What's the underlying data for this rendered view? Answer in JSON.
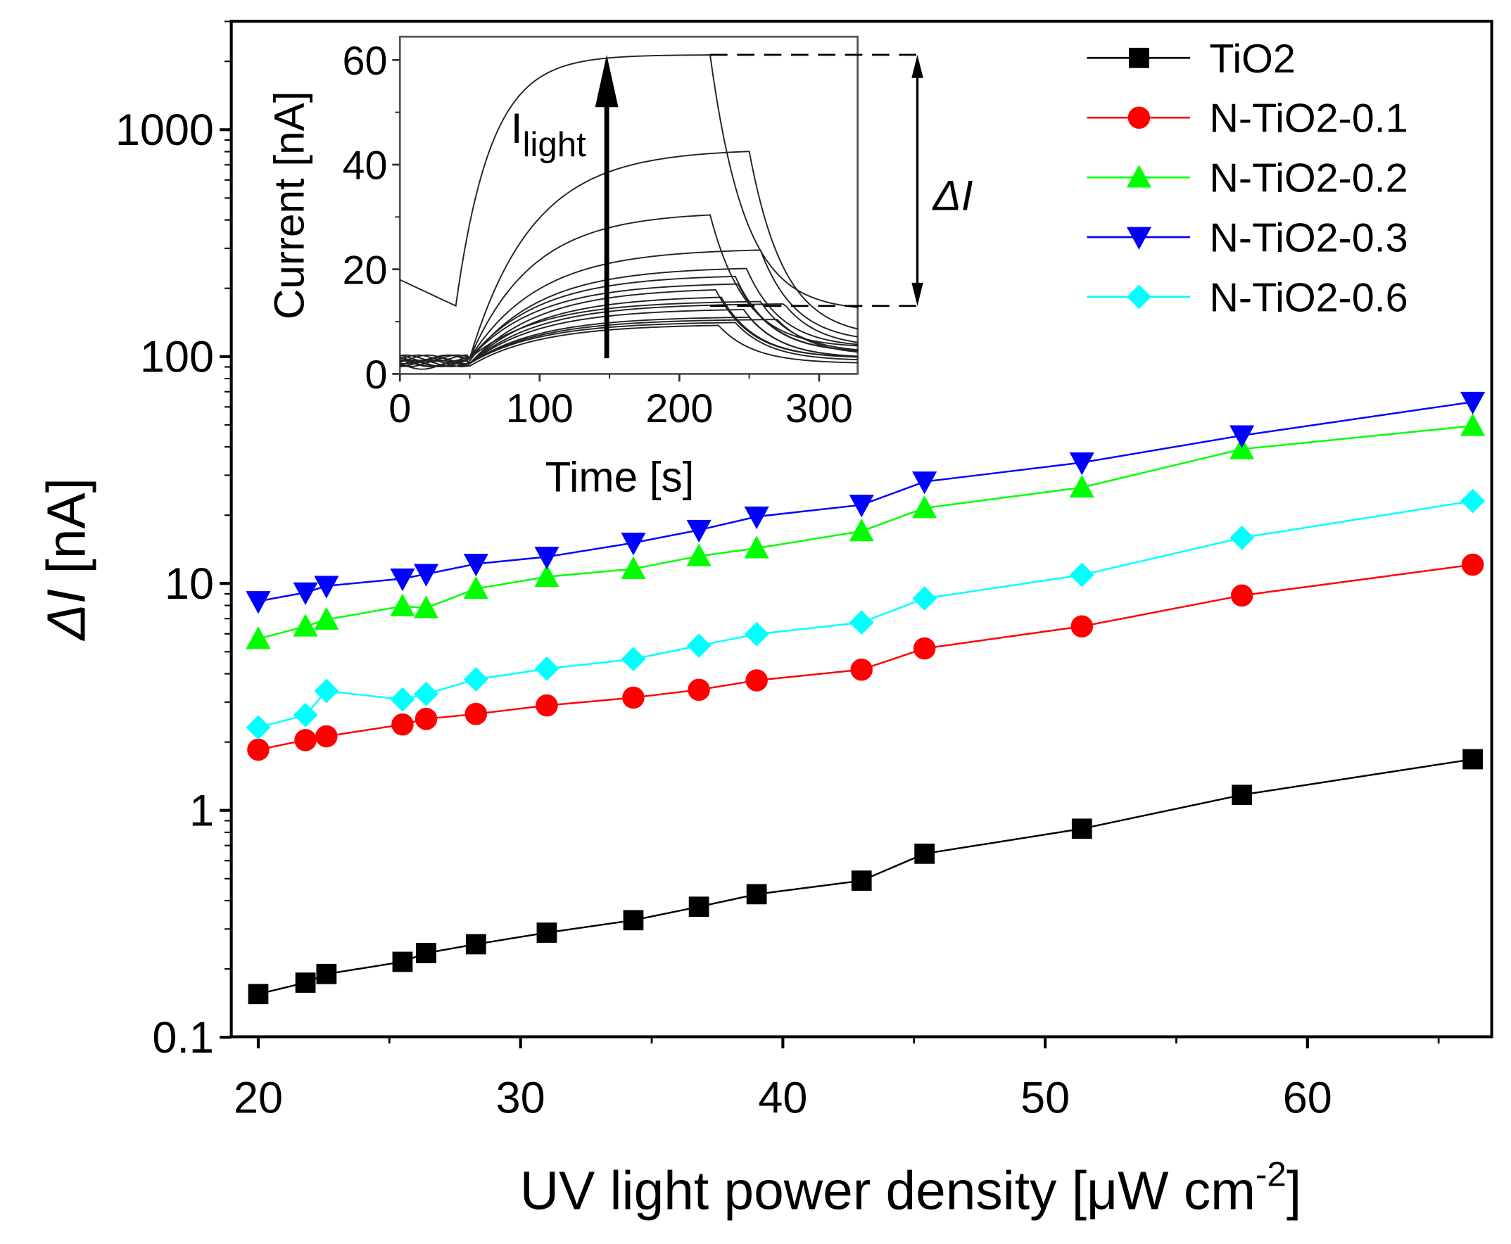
{
  "chart_data": {
    "type": "line",
    "title": "",
    "xlabel": "UV light power density [μW cm",
    "xlabel_sup": "-2",
    "xlabel_end": "]",
    "ylabel_symbol": "ΔI",
    "ylabel_unit": " [nA]",
    "xscale": "linear",
    "yscale": "log",
    "xlim": [
      19,
      67
    ],
    "ylim": [
      0.1,
      3000
    ],
    "xticks": [
      20,
      30,
      40,
      50,
      60
    ],
    "xtick_labels": [
      "20",
      "30",
      "40",
      "50",
      "60"
    ],
    "yticks": [
      0.1,
      1,
      10,
      100,
      1000
    ],
    "ytick_labels": [
      "0.1",
      "1",
      "10",
      "100",
      "1000"
    ],
    "legend_position": "top-right",
    "x": [
      20,
      21.8,
      22.6,
      25.5,
      26.4,
      28.3,
      31.0,
      34.3,
      36.8,
      39.0,
      43.0,
      45.4,
      51.4,
      57.5,
      66.3
    ],
    "series": [
      {
        "name": "TiO2",
        "color": "#000000",
        "marker": "square",
        "values": [
          0.155,
          0.174,
          0.19,
          0.215,
          0.235,
          0.257,
          0.289,
          0.328,
          0.376,
          0.427,
          0.49,
          0.644,
          0.83,
          1.17,
          1.68
        ]
      },
      {
        "name": "N-TiO2-0.1",
        "color": "#ff0000",
        "marker": "circle",
        "values": [
          1.85,
          2.04,
          2.12,
          2.39,
          2.53,
          2.66,
          2.9,
          3.14,
          3.4,
          3.74,
          4.17,
          5.17,
          6.47,
          8.85,
          12.1
        ]
      },
      {
        "name": "N-TiO2-0.2",
        "color": "#00ff00",
        "marker": "triangle-up",
        "values": [
          5.7,
          6.47,
          6.93,
          7.94,
          7.79,
          9.48,
          10.7,
          11.6,
          13.2,
          14.3,
          17.0,
          21.5,
          26.5,
          39.1,
          49.5
        ]
      },
      {
        "name": "N-TiO2-0.3",
        "color": "#0000ff",
        "marker": "triangle-down",
        "values": [
          8.35,
          9.12,
          9.75,
          10.5,
          11.0,
          12.2,
          13.1,
          15.1,
          17.2,
          19.7,
          22.2,
          28.1,
          34.1,
          44.9,
          63.1
        ]
      },
      {
        "name": "N-TiO2-0.6",
        "color": "#00ffff",
        "marker": "diamond",
        "values": [
          2.32,
          2.63,
          3.36,
          3.08,
          3.26,
          3.78,
          4.21,
          4.64,
          5.32,
          5.98,
          6.73,
          8.59,
          10.9,
          15.9,
          23.1
        ]
      }
    ],
    "inset": {
      "type": "line",
      "xlabel": "Time [s]",
      "ylabel": "Current [nA]",
      "xlim": [
        0,
        328
      ],
      "ylim": [
        0,
        64
      ],
      "xtick_labels": [
        "0",
        "100",
        "200",
        "300"
      ],
      "xticks": [
        0,
        100,
        200,
        300
      ],
      "ytick_labels": [
        "0",
        "20",
        "40",
        "60"
      ],
      "yticks": [
        0,
        20,
        40,
        60
      ],
      "annotation_arrow": "I",
      "annotation_arrow_sub": "light",
      "annotation_delta": "ΔI",
      "delta_levels": [
        61,
        13
      ],
      "curves": [
        {
          "dark": 13,
          "t_on": 40,
          "plateau": 61,
          "t_off": 222,
          "end": 12,
          "tau": 25
        },
        {
          "dark": 3,
          "t_on": 50,
          "plateau": 43,
          "t_off": 250,
          "end": 7,
          "tau": 45
        },
        {
          "dark": 3,
          "t_on": 50,
          "plateau": 31,
          "t_off": 222,
          "end": 5,
          "tau": 45
        },
        {
          "dark": 3,
          "t_on": 50,
          "plateau": 24,
          "t_off": 258,
          "end": 6,
          "tau": 50
        },
        {
          "dark": 2.5,
          "t_on": 50,
          "plateau": 20.5,
          "t_off": 248,
          "end": 5,
          "tau": 50
        },
        {
          "dark": 3,
          "t_on": 50,
          "plateau": 19,
          "t_off": 240,
          "end": 4,
          "tau": 50
        },
        {
          "dark": 3,
          "t_on": 50,
          "plateau": 17.5,
          "t_off": 242,
          "end": 4,
          "tau": 50
        },
        {
          "dark": 2,
          "t_on": 50,
          "plateau": 16.5,
          "t_off": 226,
          "end": 3,
          "tau": 50
        },
        {
          "dark": 2,
          "t_on": 50,
          "plateau": 15,
          "t_off": 230,
          "end": 3,
          "tau": 50
        },
        {
          "dark": 3,
          "t_on": 50,
          "plateau": 14,
          "t_off": 258,
          "end": 4,
          "tau": 50
        },
        {
          "dark": 2,
          "t_on": 50,
          "plateau": 13.5,
          "t_off": 275,
          "end": 5,
          "tau": 50
        },
        {
          "dark": 2,
          "t_on": 50,
          "plateau": 12.5,
          "t_off": 246,
          "end": 3,
          "tau": 50
        },
        {
          "dark": 2,
          "t_on": 50,
          "plateau": 11,
          "t_off": 250,
          "end": 3,
          "tau": 50
        },
        {
          "dark": 2,
          "t_on": 50,
          "plateau": 10.5,
          "t_off": 270,
          "end": 3.5,
          "tau": 50
        },
        {
          "dark": 2,
          "t_on": 50,
          "plateau": 10,
          "t_off": 240,
          "end": 2.5,
          "tau": 50
        },
        {
          "dark": 1.5,
          "t_on": 50,
          "plateau": 9.5,
          "t_off": 228,
          "end": 2,
          "tau": 50
        }
      ]
    }
  }
}
